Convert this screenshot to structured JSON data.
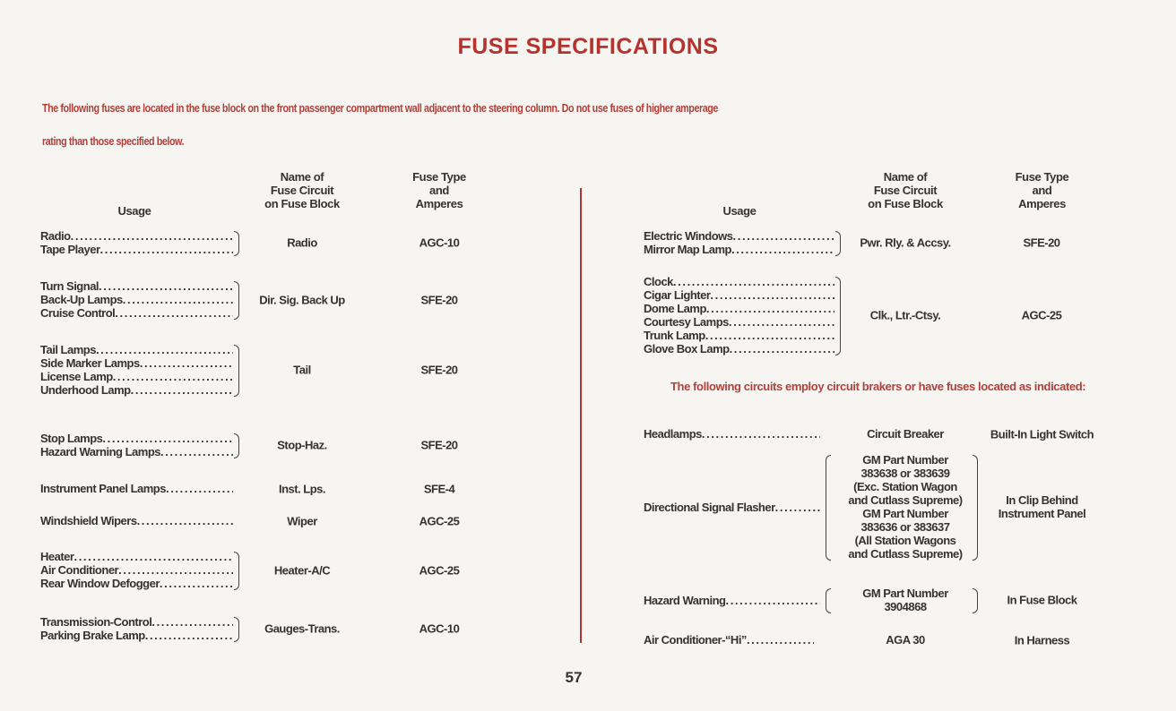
{
  "title": "FUSE SPECIFICATIONS",
  "intro": {
    "line1": "The following fuses are located in the fuse block on the front passenger compartment wall adjacent to the steering column.  Do not use fuses of higher amperage",
    "line2": "rating than those specified below."
  },
  "headers": {
    "usage": "Usage",
    "circuit": [
      "Name of",
      "Fuse Circuit",
      "on Fuse Block"
    ],
    "type": [
      "Fuse Type",
      "and",
      "Amperes"
    ]
  },
  "left": {
    "rows": [
      {
        "usage": [
          "Radio",
          "Tape Player"
        ],
        "circuit": "Radio",
        "type": "AGC-10"
      },
      {
        "usage": [
          "Turn Signal",
          "Back-Up Lamps",
          "Cruise Control"
        ],
        "circuit": "Dir. Sig. Back Up",
        "type": "SFE-20"
      },
      {
        "usage": [
          "Tail Lamps",
          "Side Marker Lamps",
          "License Lamp",
          "Underhood Lamp"
        ],
        "circuit": "Tail",
        "type": "SFE-20"
      },
      {
        "usage": [
          "Stop Lamps",
          "Hazard Warning Lamps"
        ],
        "circuit": "Stop-Haz.",
        "type": "SFE-20"
      },
      {
        "usage": [
          "Instrument Panel Lamps"
        ],
        "circuit": "Inst. Lps.",
        "type": "SFE-4"
      },
      {
        "usage": [
          "Windshield Wipers"
        ],
        "circuit": "Wiper",
        "type": "AGC-25"
      },
      {
        "usage": [
          "Heater",
          "Air Conditioner",
          "Rear Window Defogger"
        ],
        "circuit": "Heater-A/C",
        "type": "AGC-25"
      },
      {
        "usage": [
          "Transmission-Control",
          "Parking Brake Lamp"
        ],
        "circuit": "Gauges-Trans.",
        "type": "AGC-10"
      }
    ]
  },
  "right": {
    "rows": [
      {
        "usage": [
          "Electric Windows",
          "Mirror Map Lamp"
        ],
        "circuit": "Pwr. Rly. & Accsy.",
        "type": "SFE-20"
      },
      {
        "usage": [
          "Clock",
          "Cigar Lighter",
          "Dome Lamp",
          "Courtesy Lamps",
          "Trunk Lamp",
          "Glove Box Lamp"
        ],
        "circuit": "Clk., Ltr.-Ctsy.",
        "type": "AGC-25"
      }
    ],
    "note": "The following circuits employ circuit brakers or have fuses located as indicated:",
    "breakers": [
      {
        "usage": "Headlamps",
        "part": [
          "Circuit Breaker"
        ],
        "location": [
          "Built-In Light Switch"
        ]
      },
      {
        "usage": "Directional Signal Flasher",
        "part": [
          "GM Part Number",
          "383638 or 383639",
          "(Exc. Station Wagon",
          "and Cutlass Supreme)",
          "GM Part Number",
          "383636 or 383637",
          "(All Station Wagons",
          "and Cutlass Supreme)"
        ],
        "location": [
          "In Clip Behind",
          "Instrument Panel"
        ]
      },
      {
        "usage": "Hazard Warning",
        "part": [
          "GM Part Number",
          "3904868"
        ],
        "location": [
          "In Fuse Block"
        ]
      },
      {
        "usage": "Air Conditioner-“Hi”",
        "part": [
          "AGA 30"
        ],
        "location": [
          "In Harness"
        ]
      }
    ]
  },
  "page_number": "57",
  "colors": {
    "accent": "#b5332e",
    "paper": "#f7f5f1",
    "text": "#2a2a2a"
  }
}
